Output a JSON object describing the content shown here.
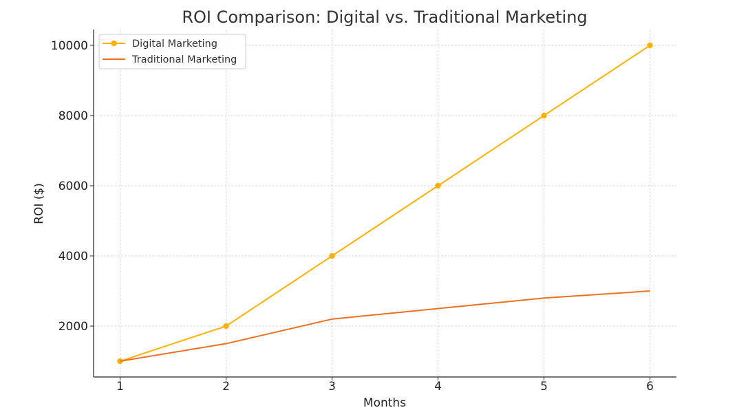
{
  "chart_data": {
    "type": "line",
    "title": "ROI Comparison: Digital vs. Traditional Marketing",
    "xlabel": "Months",
    "ylabel": "ROI ($)",
    "x": [
      1,
      2,
      3,
      4,
      5,
      6
    ],
    "xlim": [
      0.75,
      6.25
    ],
    "ylim": [
      550,
      10450
    ],
    "y_ticks": [
      2000,
      4000,
      6000,
      8000,
      10000
    ],
    "grid": true,
    "legend_position": "top-left",
    "series": [
      {
        "name": "Digital Marketing",
        "values": [
          1000,
          2000,
          4000,
          6000,
          8000,
          10000
        ],
        "color": "#FFB000",
        "marker": "circle"
      },
      {
        "name": "Traditional Marketing",
        "values": [
          1000,
          1500,
          2200,
          2500,
          2800,
          3000
        ],
        "color": "#F07020",
        "marker": "none"
      }
    ]
  }
}
